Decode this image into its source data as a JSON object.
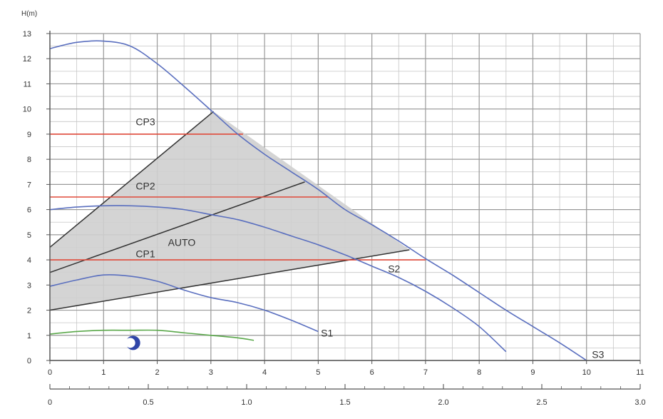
{
  "chart_data": {
    "type": "line",
    "ylabel": "H(m)",
    "x_primary": {
      "ticks": [
        "0",
        "1",
        "2",
        "3",
        "4",
        "5",
        "6",
        "7",
        "8",
        "9",
        "10",
        "11"
      ],
      "range": [
        0,
        11
      ]
    },
    "x_secondary": {
      "ticks": [
        "0",
        "0.5",
        "1.0",
        "1.5",
        "2.0",
        "2.5",
        "3.0"
      ],
      "range": [
        0,
        3.0
      ]
    },
    "y": {
      "ticks": [
        "0",
        "1",
        "2",
        "3",
        "4",
        "5",
        "6",
        "7",
        "8",
        "9",
        "10",
        "11",
        "12",
        "13"
      ],
      "range": [
        0,
        13
      ]
    },
    "grid": true,
    "colors": {
      "speed_curve": "#5a6fbf",
      "constant_pressure": "#e04a3a",
      "proportional": "#333333",
      "night_mode": "#5aa84a",
      "auto_area": "#cfcfcf",
      "grid": "#9a9a9a"
    },
    "auto_region": {
      "points": [
        [
          0,
          2.0
        ],
        [
          0,
          4.5
        ],
        [
          3.05,
          9.9
        ],
        [
          6.7,
          4.4
        ]
      ],
      "label": "AUTO"
    },
    "speed_curves": [
      {
        "name": "S3",
        "points": [
          [
            0,
            12.4
          ],
          [
            0.5,
            12.65
          ],
          [
            1.0,
            12.7
          ],
          [
            1.5,
            12.5
          ],
          [
            2.0,
            11.8
          ],
          [
            2.5,
            10.9
          ],
          [
            3.0,
            9.95
          ],
          [
            3.5,
            9.0
          ],
          [
            4.0,
            8.2
          ],
          [
            4.5,
            7.5
          ],
          [
            5.0,
            6.8
          ],
          [
            5.5,
            6.0
          ],
          [
            6.0,
            5.4
          ],
          [
            6.5,
            4.75
          ],
          [
            7.0,
            4.05
          ],
          [
            7.5,
            3.4
          ],
          [
            8.0,
            2.7
          ],
          [
            8.5,
            2.0
          ],
          [
            9.0,
            1.35
          ],
          [
            9.5,
            0.7
          ],
          [
            10.0,
            0.0
          ]
        ]
      },
      {
        "name": "S2",
        "points": [
          [
            0,
            6.0
          ],
          [
            0.5,
            6.1
          ],
          [
            1.0,
            6.15
          ],
          [
            1.5,
            6.15
          ],
          [
            2.0,
            6.1
          ],
          [
            2.5,
            6.0
          ],
          [
            3.0,
            5.8
          ],
          [
            3.5,
            5.6
          ],
          [
            4.0,
            5.3
          ],
          [
            4.5,
            4.95
          ],
          [
            5.0,
            4.6
          ],
          [
            5.5,
            4.2
          ],
          [
            6.0,
            3.75
          ],
          [
            6.5,
            3.3
          ],
          [
            7.0,
            2.75
          ],
          [
            7.5,
            2.1
          ],
          [
            8.0,
            1.35
          ],
          [
            8.5,
            0.35
          ]
        ]
      },
      {
        "name": "S1",
        "points": [
          [
            0,
            2.95
          ],
          [
            0.5,
            3.2
          ],
          [
            1.0,
            3.4
          ],
          [
            1.5,
            3.35
          ],
          [
            2.0,
            3.15
          ],
          [
            2.5,
            2.8
          ],
          [
            3.0,
            2.5
          ],
          [
            3.5,
            2.3
          ],
          [
            4.0,
            2.0
          ],
          [
            4.5,
            1.6
          ],
          [
            5.0,
            1.15
          ]
        ]
      }
    ],
    "night_curve": {
      "points": [
        [
          0,
          1.05
        ],
        [
          0.5,
          1.15
        ],
        [
          1.0,
          1.2
        ],
        [
          1.5,
          1.2
        ],
        [
          2.0,
          1.2
        ],
        [
          2.5,
          1.1
        ],
        [
          3.0,
          1.0
        ],
        [
          3.5,
          0.9
        ],
        [
          3.8,
          0.8
        ]
      ]
    },
    "constant_pressure_lines": [
      {
        "name": "CP3",
        "y": 9.0,
        "x": [
          0,
          3.6
        ]
      },
      {
        "name": "CP2",
        "y": 6.5,
        "x": [
          0,
          5.2
        ]
      },
      {
        "name": "CP1",
        "y": 4.0,
        "x": [
          0,
          7.0
        ]
      }
    ],
    "proportional_lines": [
      {
        "points": [
          [
            0,
            2.0
          ],
          [
            6.7,
            4.4
          ]
        ]
      },
      {
        "points": [
          [
            0,
            3.5
          ],
          [
            4.75,
            7.1
          ]
        ]
      },
      {
        "points": [
          [
            0,
            4.5
          ],
          [
            3.05,
            9.9
          ]
        ]
      }
    ],
    "labels": [
      {
        "text": "CP3",
        "x": 1.6,
        "y": 9.35
      },
      {
        "text": "CP2",
        "x": 1.6,
        "y": 6.8
      },
      {
        "text": "CP1",
        "x": 1.6,
        "y": 4.1
      },
      {
        "text": "AUTO",
        "x": 2.2,
        "y": 4.55
      },
      {
        "text": "S2",
        "x": 6.3,
        "y": 3.5
      },
      {
        "text": "S1",
        "x": 5.05,
        "y": 0.95
      },
      {
        "text": "S3",
        "x": 10.1,
        "y": 0.1
      }
    ],
    "night_icon": {
      "name": "moon-icon",
      "x": 1.55,
      "y": 0.7
    }
  }
}
